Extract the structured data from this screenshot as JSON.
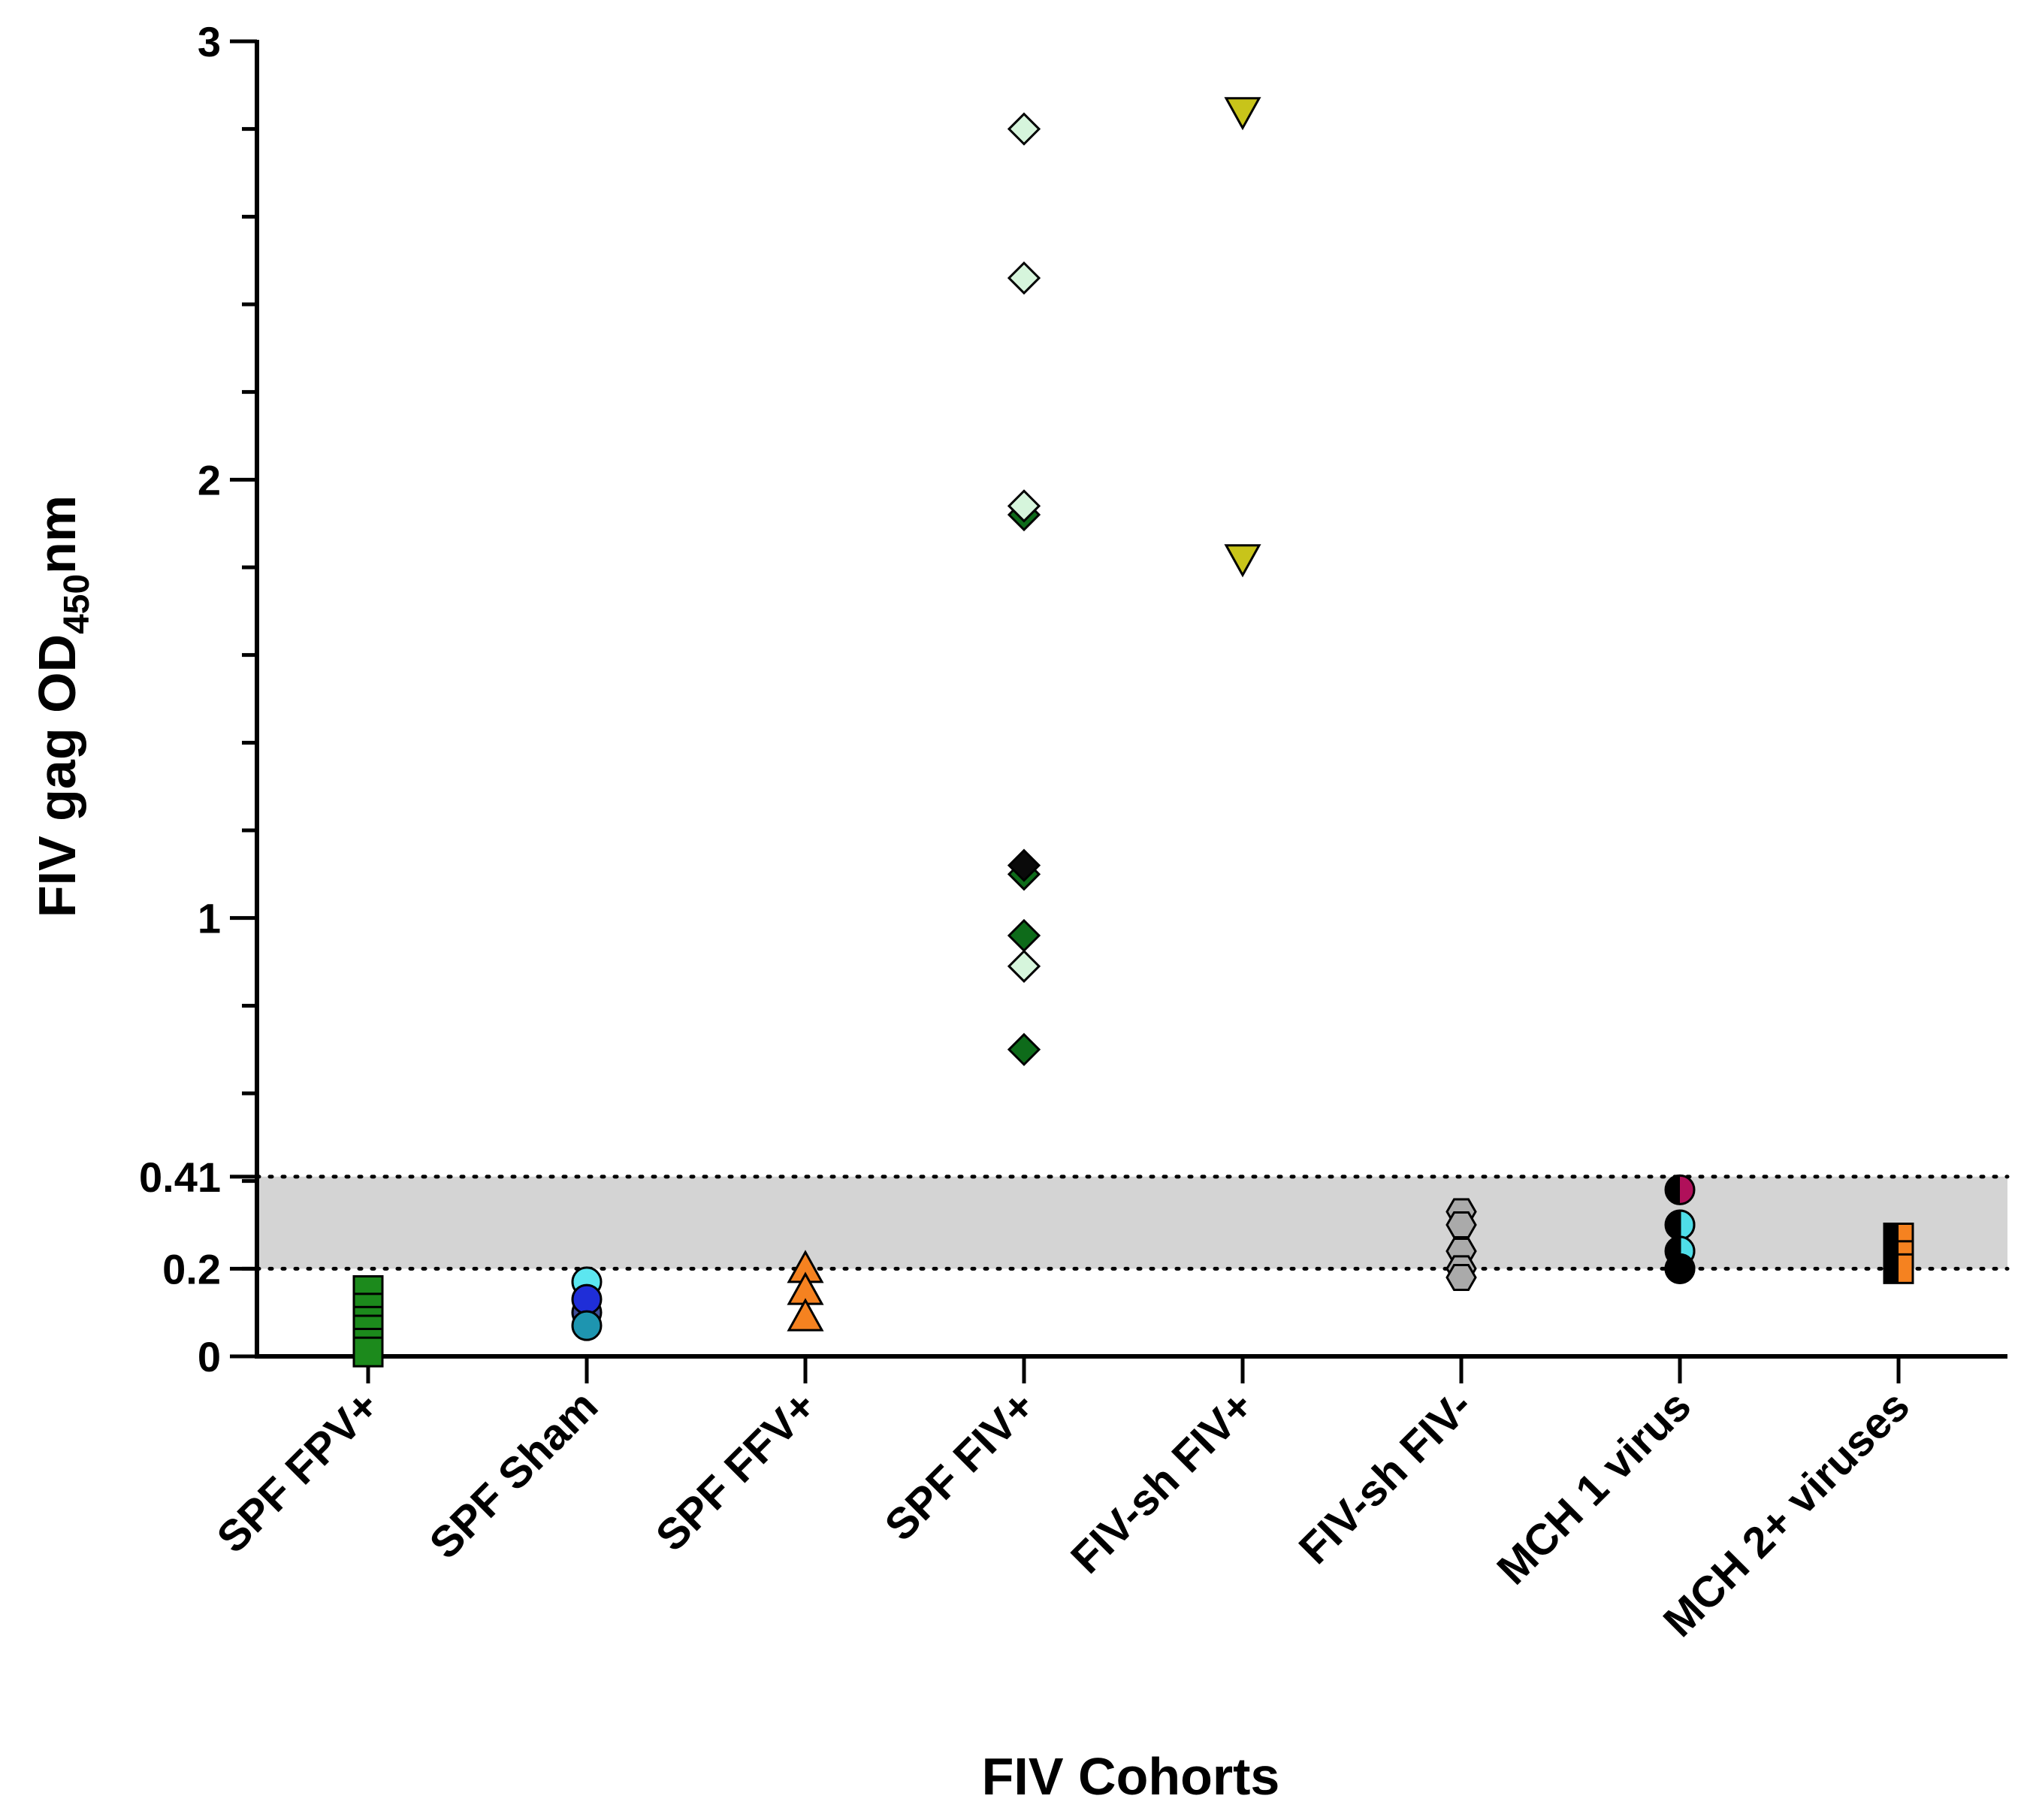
{
  "chart_data": {
    "type": "scatter",
    "xlabel": "FIV Cohorts",
    "ylabel": {
      "prefix": "FIV gag OD",
      "subscript": "450",
      "suffix": "nm"
    },
    "ylim": [
      0,
      3
    ],
    "y_ticks": [
      {
        "value": 0,
        "label": "0"
      },
      {
        "value": 0.2,
        "label": "0.2"
      },
      {
        "value": 0.41,
        "label": "0.41"
      },
      {
        "value": 1,
        "label": "1"
      },
      {
        "value": 2,
        "label": "2"
      },
      {
        "value": 3,
        "label": "3"
      }
    ],
    "y_minor_ticks": [
      0.2,
      0.4,
      0.6,
      0.8,
      1.2,
      1.4,
      1.6,
      1.8,
      2.2,
      2.4,
      2.6,
      2.8
    ],
    "threshold_band": {
      "lower": 0.2,
      "upper": 0.41,
      "fill": "#d4d4d4",
      "line_style": "dotted"
    },
    "categories": [
      "SPF FPV+",
      "SPF Sham",
      "SPF FFV+",
      "SPF FIV+",
      "FIV-sh FIV+",
      "FIV-sh FIV-",
      "MCH 1 virus",
      "MCH 2+ viruses"
    ],
    "series": [
      {
        "name": "SPF FPV+",
        "marker": "square",
        "points": [
          {
            "y": 0.15,
            "color": "#1c8a1c"
          },
          {
            "y": 0.11,
            "color": "#1c8a1c"
          },
          {
            "y": 0.08,
            "color": "#1c8a1c"
          },
          {
            "y": 0.06,
            "color": "#1c8a1c"
          },
          {
            "y": 0.03,
            "color": "#1c8a1c"
          },
          {
            "y": 0.01,
            "color": "#1c8a1c"
          }
        ]
      },
      {
        "name": "SPF Sham",
        "marker": "circle",
        "points": [
          {
            "y": 0.17,
            "color": "#5ce6f0"
          },
          {
            "y": 0.1,
            "color": "#3f4f9a"
          },
          {
            "y": 0.13,
            "color": "#1f2ed8"
          },
          {
            "y": 0.07,
            "color": "#1e95b0"
          }
        ]
      },
      {
        "name": "SPF FFV+",
        "marker": "triangle-up",
        "points": [
          {
            "y": 0.2,
            "color": "#f58220"
          },
          {
            "y": 0.15,
            "color": "#f58220"
          },
          {
            "y": 0.09,
            "color": "#f58220"
          }
        ]
      },
      {
        "name": "SPF FIV+",
        "marker": "diamond",
        "points": [
          {
            "y": 2.8,
            "color": "#d6f5dc"
          },
          {
            "y": 2.46,
            "color": "#d6f5dc"
          },
          {
            "y": 1.92,
            "color": "#0e6b1a"
          },
          {
            "y": 1.94,
            "color": "#d6f5dc"
          },
          {
            "y": 1.1,
            "color": "#0e6b1a"
          },
          {
            "y": 1.12,
            "color": "#0a0a0a"
          },
          {
            "y": 0.96,
            "color": "#0e6b1a"
          },
          {
            "y": 0.89,
            "color": "#d6f5dc"
          },
          {
            "y": 0.7,
            "color": "#0e6b1a"
          }
        ]
      },
      {
        "name": "FIV-sh FIV+",
        "marker": "triangle-down",
        "points": [
          {
            "y": 2.84,
            "color": "#c8c41a"
          },
          {
            "y": 1.82,
            "color": "#c8c41a"
          }
        ]
      },
      {
        "name": "FIV-sh FIV-",
        "marker": "hexagon",
        "points": [
          {
            "y": 0.33,
            "color": "#aaaaaa"
          },
          {
            "y": 0.3,
            "color": "#aaaaaa"
          },
          {
            "y": 0.24,
            "color": "#aaaaaa"
          },
          {
            "y": 0.2,
            "color": "#aaaaaa"
          },
          {
            "y": 0.18,
            "color": "#aaaaaa"
          }
        ]
      },
      {
        "name": "MCH 1 virus",
        "marker": "circle",
        "points": [
          {
            "y": 0.38,
            "color": "#b0105a",
            "style": "half-left-black"
          },
          {
            "y": 0.3,
            "color": "#000000"
          },
          {
            "y": 0.3,
            "color": "#4fdde8",
            "style": "half-right"
          },
          {
            "y": 0.24,
            "color": "#000000"
          },
          {
            "y": 0.24,
            "color": "#4fdde8",
            "style": "half-right"
          },
          {
            "y": 0.2,
            "color": "#ffffff"
          },
          {
            "y": 0.2,
            "color": "#000000"
          }
        ]
      },
      {
        "name": "MCH 2+ viruses",
        "marker": "square",
        "points": [
          {
            "y": 0.27,
            "color": "#f58220",
            "style": "half-left-black"
          },
          {
            "y": 0.23,
            "color": "#f58220",
            "style": "half-left-black"
          },
          {
            "y": 0.2,
            "color": "#f58220",
            "style": "half-left-black"
          }
        ]
      }
    ]
  }
}
